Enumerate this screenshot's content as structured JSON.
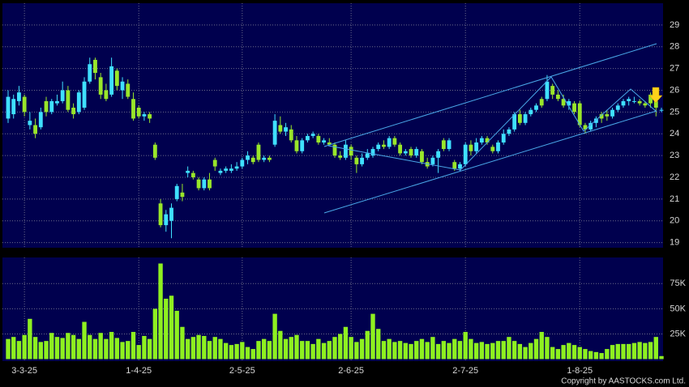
{
  "chart_data": {
    "type": "candlestick",
    "categories": [
      null,
      null,
      null,
      "3-3-25",
      null,
      null,
      null,
      null,
      null,
      null,
      null,
      null,
      null,
      null,
      null,
      null,
      null,
      null,
      null,
      null,
      null,
      null,
      null,
      null,
      "1-4-25",
      null,
      null,
      null,
      null,
      null,
      null,
      null,
      null,
      null,
      null,
      null,
      null,
      null,
      null,
      null,
      null,
      null,
      null,
      "2-5-25",
      null,
      null,
      null,
      null,
      null,
      null,
      null,
      null,
      null,
      null,
      null,
      null,
      null,
      null,
      null,
      null,
      null,
      null,
      null,
      "2-6-25",
      null,
      null,
      null,
      null,
      null,
      null,
      null,
      null,
      null,
      null,
      null,
      null,
      null,
      null,
      null,
      null,
      null,
      null,
      null,
      null,
      "2-7-25",
      null,
      null,
      null,
      null,
      null,
      null,
      null,
      null,
      null,
      null,
      null,
      null,
      null,
      null,
      null,
      null,
      null,
      null,
      null,
      null,
      "1-8-25",
      null,
      null,
      null,
      null,
      null,
      null,
      null,
      null,
      null,
      null,
      null,
      null,
      null,
      null,
      null
    ],
    "ohlc": [
      [
        24.7,
        26.0,
        24.5,
        25.7
      ],
      [
        24.9,
        25.8,
        24.7,
        25.6
      ],
      [
        25.5,
        26.2,
        25.3,
        25.9
      ],
      [
        25.7,
        25.8,
        24.8,
        25.0
      ],
      [
        24.4,
        25.0,
        24.2,
        24.6
      ],
      [
        24.4,
        24.7,
        23.8,
        24.0
      ],
      [
        24.3,
        25.2,
        24.2,
        25.0
      ],
      [
        25.5,
        25.7,
        24.8,
        25.0
      ],
      [
        25.0,
        25.6,
        24.9,
        25.5
      ],
      [
        25.4,
        25.8,
        25.3,
        25.5
      ],
      [
        25.5,
        26.4,
        25.4,
        26.0
      ],
      [
        26.0,
        26.2,
        25.0,
        25.1
      ],
      [
        25.2,
        25.4,
        24.7,
        24.9
      ],
      [
        25.0,
        26.0,
        24.9,
        25.9
      ],
      [
        25.2,
        26.6,
        25.1,
        26.4
      ],
      [
        26.4,
        27.5,
        26.3,
        27.2
      ],
      [
        27.4,
        27.5,
        26.5,
        26.8
      ],
      [
        26.6,
        26.8,
        25.6,
        25.8
      ],
      [
        26.0,
        26.3,
        25.5,
        25.6
      ],
      [
        25.8,
        27.5,
        25.7,
        27.1
      ],
      [
        26.9,
        27.0,
        26.0,
        26.2
      ],
      [
        26.0,
        26.6,
        25.6,
        26.4
      ],
      [
        26.3,
        26.5,
        25.6,
        25.7
      ],
      [
        25.6,
        25.9,
        24.6,
        24.7
      ],
      [
        25.2,
        25.3,
        24.7,
        24.8
      ],
      [
        24.8,
        25.0,
        24.6,
        24.9
      ],
      [
        24.9,
        25.0,
        24.5,
        24.7
      ],
      [
        23.5,
        23.6,
        22.8,
        22.9
      ],
      [
        20.8,
        21.0,
        19.7,
        19.8
      ],
      [
        19.8,
        20.5,
        19.5,
        20.3
      ],
      [
        20.0,
        20.8,
        19.2,
        20.6
      ],
      [
        21.0,
        21.7,
        20.9,
        21.6
      ],
      [
        21.3,
        21.7,
        20.9,
        21.1
      ],
      [
        22.2,
        22.5,
        22.0,
        22.3
      ],
      [
        22.2,
        22.3,
        21.9,
        22.0
      ],
      [
        21.9,
        22.0,
        21.4,
        21.5
      ],
      [
        21.5,
        22.0,
        21.4,
        21.9
      ],
      [
        21.9,
        22.2,
        21.4,
        21.5
      ],
      [
        22.8,
        22.9,
        22.3,
        22.5
      ],
      [
        22.2,
        22.4,
        22.1,
        22.3
      ],
      [
        22.3,
        22.5,
        22.2,
        22.4
      ],
      [
        22.3,
        22.6,
        22.2,
        22.4
      ],
      [
        22.4,
        22.7,
        22.3,
        22.5
      ],
      [
        22.5,
        22.9,
        22.4,
        22.8
      ],
      [
        22.8,
        23.2,
        22.6,
        23.0
      ],
      [
        22.9,
        23.0,
        22.6,
        22.7
      ],
      [
        23.5,
        23.6,
        22.7,
        22.8
      ],
      [
        22.8,
        23.0,
        22.7,
        22.9
      ],
      [
        22.9,
        23.0,
        22.7,
        22.8
      ],
      [
        23.5,
        24.9,
        23.4,
        24.6
      ],
      [
        24.4,
        24.8,
        24.0,
        24.1
      ],
      [
        24.1,
        24.5,
        23.9,
        24.3
      ],
      [
        24.2,
        24.4,
        23.6,
        23.7
      ],
      [
        23.7,
        23.9,
        23.1,
        23.2
      ],
      [
        23.2,
        23.8,
        23.1,
        23.7
      ],
      [
        23.7,
        24.0,
        23.6,
        23.9
      ],
      [
        23.9,
        24.1,
        23.8,
        24.0
      ],
      [
        23.9,
        24.0,
        23.5,
        23.6
      ],
      [
        23.6,
        23.8,
        23.5,
        23.7
      ],
      [
        23.6,
        23.8,
        23.5,
        23.5
      ],
      [
        23.5,
        23.6,
        22.9,
        23.0
      ],
      [
        23.0,
        23.2,
        22.8,
        22.9
      ],
      [
        22.9,
        23.7,
        22.8,
        23.5
      ],
      [
        23.4,
        23.5,
        22.8,
        23.0
      ],
      [
        22.9,
        23.0,
        22.2,
        22.6
      ],
      [
        22.6,
        23.1,
        22.5,
        22.9
      ],
      [
        22.9,
        23.3,
        22.8,
        23.1
      ],
      [
        23.0,
        23.4,
        22.9,
        23.3
      ],
      [
        23.3,
        23.6,
        23.2,
        23.5
      ],
      [
        23.5,
        23.7,
        23.3,
        23.4
      ],
      [
        23.4,
        23.9,
        23.3,
        23.8
      ],
      [
        23.8,
        23.9,
        23.4,
        23.5
      ],
      [
        23.5,
        23.6,
        23.0,
        23.1
      ],
      [
        23.1,
        23.3,
        23.0,
        23.2
      ],
      [
        23.3,
        23.4,
        22.9,
        23.0
      ],
      [
        23.0,
        23.4,
        22.9,
        23.3
      ],
      [
        23.2,
        23.3,
        22.6,
        22.7
      ],
      [
        22.7,
        22.9,
        22.4,
        22.5
      ],
      [
        22.6,
        23.0,
        22.5,
        22.9
      ],
      [
        22.9,
        23.3,
        22.2,
        23.2
      ],
      [
        23.7,
        23.8,
        23.2,
        23.3
      ],
      [
        23.3,
        23.8,
        23.2,
        23.7
      ],
      [
        22.7,
        22.8,
        22.3,
        22.4
      ],
      [
        22.4,
        22.7,
        22.3,
        22.6
      ],
      [
        22.6,
        23.6,
        22.5,
        23.5
      ],
      [
        23.5,
        23.7,
        23.0,
        23.2
      ],
      [
        23.2,
        23.8,
        23.1,
        23.6
      ],
      [
        23.6,
        23.9,
        23.5,
        23.8
      ],
      [
        23.8,
        23.9,
        23.5,
        23.6
      ],
      [
        23.4,
        23.5,
        23.1,
        23.2
      ],
      [
        23.2,
        23.7,
        23.1,
        23.6
      ],
      [
        23.6,
        24.2,
        23.5,
        24.0
      ],
      [
        24.0,
        24.3,
        23.9,
        24.2
      ],
      [
        24.2,
        25.0,
        24.1,
        24.9
      ],
      [
        24.9,
        25.1,
        24.4,
        24.5
      ],
      [
        24.5,
        25.0,
        24.4,
        24.9
      ],
      [
        24.9,
        25.2,
        24.8,
        25.1
      ],
      [
        25.1,
        25.4,
        25.0,
        25.3
      ],
      [
        25.6,
        25.7,
        25.2,
        25.3
      ],
      [
        25.6,
        26.7,
        25.5,
        26.4
      ],
      [
        26.2,
        26.3,
        25.6,
        25.8
      ],
      [
        25.8,
        26.0,
        25.5,
        25.6
      ],
      [
        25.6,
        25.8,
        25.2,
        25.3
      ],
      [
        25.3,
        25.6,
        25.1,
        25.5
      ],
      [
        25.4,
        25.5,
        24.9,
        25.0
      ],
      [
        25.4,
        25.5,
        24.3,
        24.4
      ],
      [
        24.4,
        24.5,
        24.0,
        24.2
      ],
      [
        24.2,
        24.6,
        24.1,
        24.5
      ],
      [
        24.5,
        24.8,
        24.3,
        24.7
      ],
      [
        24.9,
        25.0,
        24.5,
        24.7
      ],
      [
        24.9,
        25.1,
        24.6,
        24.8
      ],
      [
        24.8,
        25.2,
        24.7,
        25.1
      ],
      [
        25.1,
        25.4,
        25.0,
        25.3
      ],
      [
        25.3,
        25.6,
        25.2,
        25.5
      ],
      [
        25.5,
        25.7,
        25.3,
        25.6
      ],
      [
        25.5,
        25.7,
        25.4,
        25.5
      ],
      [
        25.5,
        25.6,
        25.3,
        25.4
      ],
      [
        25.4,
        25.5,
        25.2,
        25.3
      ],
      [
        25.8,
        25.9,
        25.2,
        25.4
      ],
      [
        25.5,
        25.6,
        24.8,
        25.2
      ],
      [
        25.1,
        25.2,
        25.0,
        25.1
      ]
    ],
    "up_color": "#3fe0ff",
    "down_color": "#99e62a",
    "ylim": [
      18.8,
      30
    ],
    "yticks": [
      19,
      20,
      21,
      22,
      23,
      24,
      25,
      26,
      27,
      28,
      29
    ],
    "grid": true,
    "volume": {
      "color": "#8ef020",
      "values": [
        20000,
        22000,
        18000,
        24000,
        40000,
        22000,
        17000,
        18000,
        26000,
        22000,
        21000,
        26000,
        24000,
        20000,
        37000,
        24000,
        20000,
        26000,
        20000,
        27000,
        21000,
        17000,
        18000,
        27000,
        14000,
        23000,
        20000,
        50000,
        95000,
        60000,
        63000,
        48000,
        32000,
        20000,
        22000,
        24000,
        23000,
        18000,
        22000,
        20000,
        16000,
        14000,
        15000,
        17000,
        12000,
        10000,
        18000,
        20000,
        18000,
        45000,
        28000,
        20000,
        22000,
        24000,
        18000,
        18000,
        15000,
        20000,
        16000,
        18000,
        22000,
        25000,
        32000,
        22000,
        17000,
        20000,
        28000,
        45000,
        30000,
        18000,
        20000,
        17000,
        18000,
        16000,
        15000,
        18000,
        20000,
        17000,
        22000,
        15000,
        18000,
        16000,
        20000,
        18000,
        27000,
        20000,
        16000,
        17000,
        15000,
        16000,
        18000,
        18000,
        22000,
        18000,
        15000,
        12000,
        16000,
        20000,
        27000,
        22000,
        12000,
        10000,
        14000,
        16000,
        14000,
        12000,
        10000,
        8000,
        7000,
        6000,
        10000,
        14000,
        15000,
        15000,
        15000,
        16000,
        17000,
        16000,
        17000,
        22000,
        3000
      ],
      "ylim": [
        -2000,
        101000
      ],
      "yticks": [
        {
          "value": 25000,
          "label": "25K"
        },
        {
          "value": 50000,
          "label": "50K"
        },
        {
          "value": 75000,
          "label": "75K"
        }
      ]
    },
    "footer": "Copyright by AASTOCKS.com Ltd."
  }
}
